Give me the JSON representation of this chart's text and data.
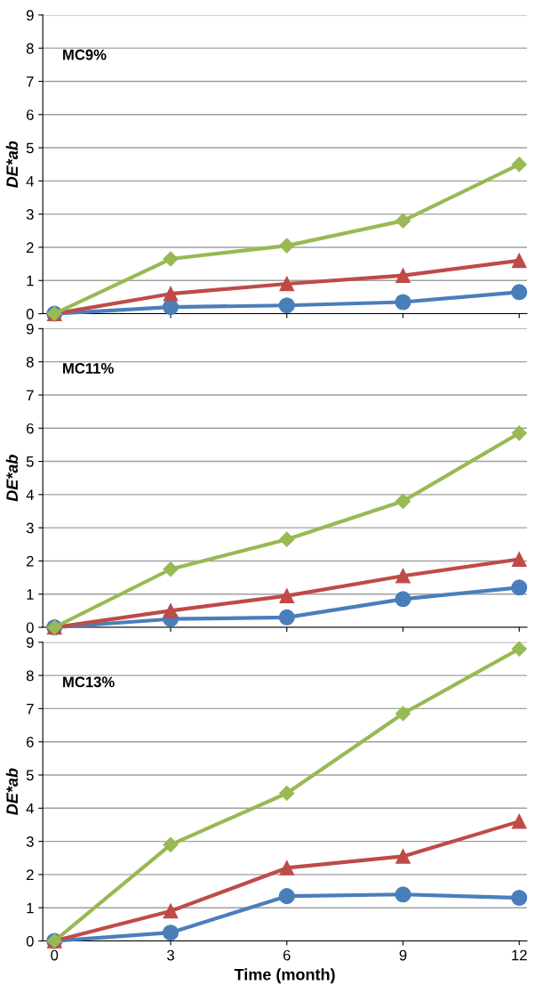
{
  "chart_data": [
    {
      "type": "line",
      "title": "MC9%",
      "ylabel": "DE*ab",
      "x": [
        0,
        3,
        6,
        9,
        12
      ],
      "xlim": [
        -0.3,
        12.2
      ],
      "xticks": [
        0,
        3,
        6,
        9,
        12
      ],
      "ylim": [
        0,
        9
      ],
      "yticks": [
        0,
        1,
        2,
        3,
        4,
        5,
        6,
        7,
        8,
        9
      ],
      "grid": "y",
      "tick_labels": "y",
      "series": [
        {
          "color": "#4a7ebb",
          "marker": "circle",
          "values": [
            0,
            0.2,
            0.25,
            0.35,
            0.65
          ]
        },
        {
          "color": "#be4b48",
          "marker": "triangle",
          "values": [
            0,
            0.6,
            0.9,
            1.15,
            1.6
          ]
        },
        {
          "color": "#98b954",
          "marker": "diamond",
          "values": [
            0,
            1.65,
            2.05,
            2.8,
            4.5
          ]
        }
      ]
    },
    {
      "type": "line",
      "title": "MC11%",
      "ylabel": "DE*ab",
      "x": [
        0,
        3,
        6,
        9,
        12
      ],
      "xlim": [
        -0.3,
        12.2
      ],
      "xticks": [
        0,
        3,
        6,
        9,
        12
      ],
      "ylim": [
        0,
        9
      ],
      "yticks": [
        0,
        1,
        2,
        3,
        4,
        5,
        6,
        7,
        8,
        9
      ],
      "grid": "y",
      "tick_labels": "y",
      "series": [
        {
          "color": "#4a7ebb",
          "marker": "circle",
          "values": [
            0,
            0.25,
            0.3,
            0.85,
            1.2
          ]
        },
        {
          "color": "#be4b48",
          "marker": "triangle",
          "values": [
            0,
            0.5,
            0.95,
            1.55,
            2.05
          ]
        },
        {
          "color": "#98b954",
          "marker": "diamond",
          "values": [
            0,
            1.75,
            2.65,
            3.8,
            5.85
          ]
        }
      ]
    },
    {
      "type": "line",
      "title": "MC13%",
      "ylabel": "DE*ab",
      "xlabel": "Time (month)",
      "x": [
        0,
        3,
        6,
        9,
        12
      ],
      "xlim": [
        -0.3,
        12.2
      ],
      "xticks": [
        0,
        3,
        6,
        9,
        12
      ],
      "ylim": [
        0,
        9
      ],
      "yticks": [
        0,
        1,
        2,
        3,
        4,
        5,
        6,
        7,
        8,
        9
      ],
      "grid": "y",
      "series": [
        {
          "color": "#4a7ebb",
          "marker": "circle",
          "values": [
            0,
            0.25,
            1.35,
            1.4,
            1.3
          ]
        },
        {
          "color": "#be4b48",
          "marker": "triangle",
          "values": [
            0,
            0.9,
            2.2,
            2.55,
            3.6
          ]
        },
        {
          "color": "#98b954",
          "marker": "diamond",
          "values": [
            0,
            2.9,
            4.45,
            6.85,
            8.8
          ]
        }
      ]
    }
  ]
}
